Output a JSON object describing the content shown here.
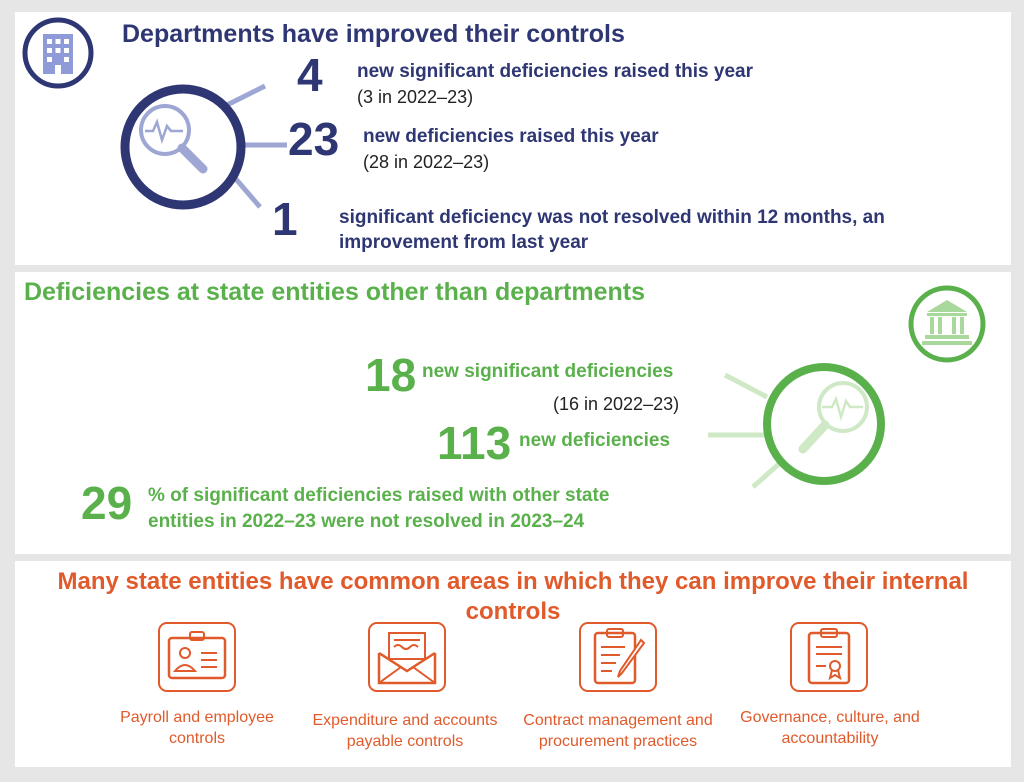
{
  "section1": {
    "title": "Departments have improved their controls",
    "icon": "building-icon",
    "color": "#2e3673",
    "stats": [
      {
        "number": "4",
        "label": "new significant deficiencies raised this year",
        "note": "(3 in 2022–23)"
      },
      {
        "number": "23",
        "label": "new deficiencies raised this year",
        "note": "(28 in 2022–23)"
      },
      {
        "number": "1",
        "label_line1": "significant deficiency was not resolved within 12 months, an",
        "label_line2": "improvement from last year"
      }
    ]
  },
  "section2": {
    "title": "Deficiencies at state entities other than departments",
    "icon": "government-building-icon",
    "color": "#5ab14c",
    "stats": [
      {
        "number": "18",
        "label": "new significant deficiencies",
        "note": "(16 in 2022–23)"
      },
      {
        "number": "113",
        "label": "new deficiencies"
      },
      {
        "number": "29",
        "label_line1": "% of significant deficiencies raised with other state",
        "label_line2": "entities in 2022–23 were not resolved in 2023–24"
      }
    ]
  },
  "section3": {
    "title_line1": "Many state entities have common areas in which they can improve their internal",
    "title_line2": "controls",
    "color": "#e05a2b",
    "areas": [
      {
        "icon": "id-badge-icon",
        "line1": "Payroll and employee",
        "line2": "controls"
      },
      {
        "icon": "envelope-invoice-icon",
        "line1": "Expenditure and accounts",
        "line2": "payable controls"
      },
      {
        "icon": "clipboard-pen-icon",
        "line1": "Contract management and",
        "line2": "procurement practices"
      },
      {
        "icon": "certificate-clipboard-icon",
        "line1": "Governance, culture, and",
        "line2": "accountability"
      }
    ]
  }
}
